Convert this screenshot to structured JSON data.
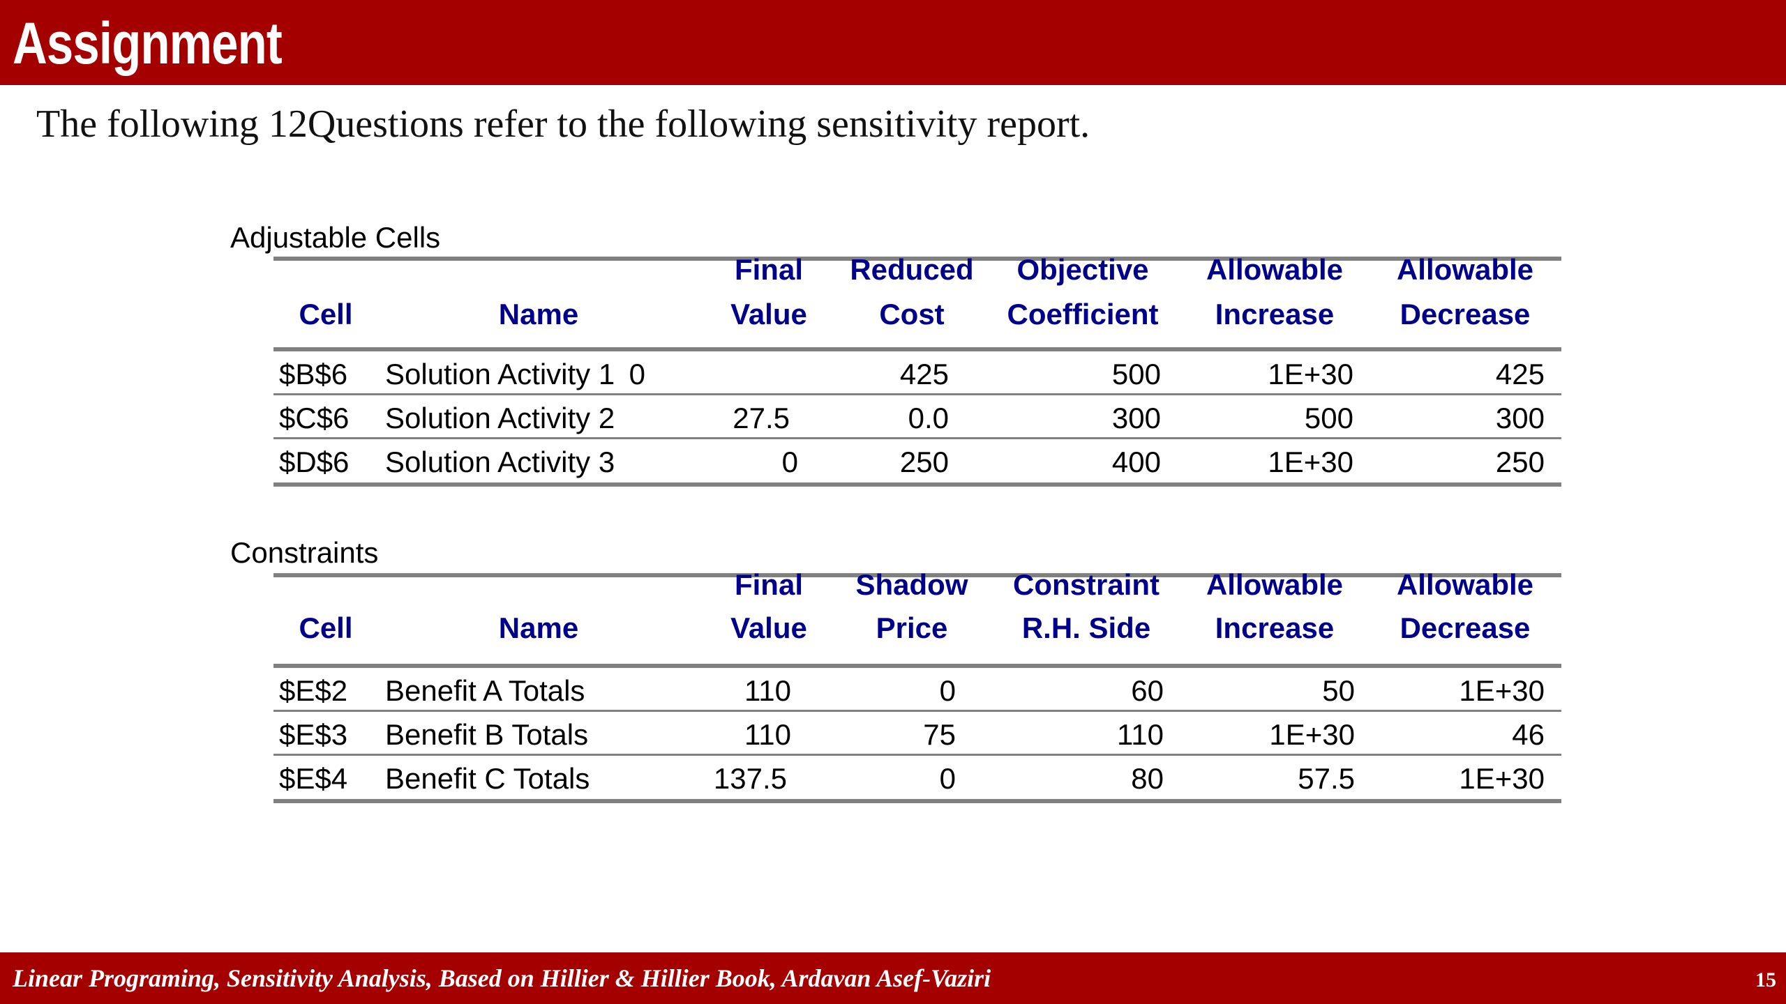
{
  "slide": {
    "title": "Assignment",
    "subtitle": "The following 12Questions refer to the following sensitivity report.",
    "footer": "Linear Programing, Sensitivity Analysis, Based on Hillier & Hillier Book, Ardavan Asef-Vaziri",
    "page_number": "15"
  },
  "adjustable": {
    "label": "Adjustable Cells",
    "headers": [
      [
        "",
        "Cell"
      ],
      [
        "",
        "Name"
      ],
      [
        "Final",
        "Value"
      ],
      [
        "Reduced",
        "Cost"
      ],
      [
        "Objective",
        "Coefficient"
      ],
      [
        "Allowable",
        "Increase"
      ],
      [
        "Allowable",
        "Decrease"
      ]
    ],
    "rows": [
      [
        "$B$6",
        "Solution Activity 1",
        "0",
        "425",
        "500",
        "1E+30",
        "425"
      ],
      [
        "$C$6",
        "Solution Activity 2",
        "27.5",
        "0.0",
        "300",
        "500",
        "300"
      ],
      [
        "$D$6",
        "Solution Activity 3",
        "0",
        "250",
        "400",
        "1E+30",
        "250"
      ]
    ]
  },
  "constraints": {
    "label": "Constraints",
    "headers": [
      [
        "",
        "Cell"
      ],
      [
        "",
        "Name"
      ],
      [
        "Final",
        "Value"
      ],
      [
        "Shadow",
        "Price"
      ],
      [
        "Constraint",
        "R.H. Side"
      ],
      [
        "Allowable",
        "Increase"
      ],
      [
        "Allowable",
        "Decrease"
      ]
    ],
    "rows": [
      [
        "$E$2",
        "Benefit A Totals",
        "110",
        "0",
        "60",
        "50",
        "1E+30"
      ],
      [
        "$E$3",
        "Benefit B Totals",
        "110",
        "75",
        "110",
        "1E+30",
        "46"
      ],
      [
        "$E$4",
        "Benefit C Totals",
        "137.5",
        "0",
        "80",
        "57.5",
        "1E+30"
      ]
    ]
  },
  "colors": {
    "banner": "#a50000",
    "header_text": "#00008b",
    "rule": "#808080"
  }
}
